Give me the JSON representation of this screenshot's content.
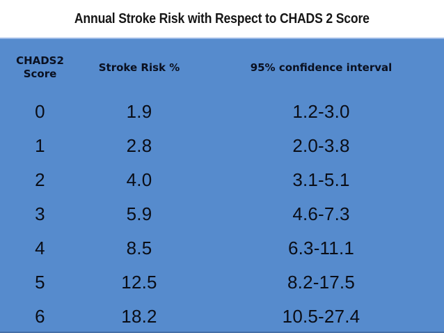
{
  "title": "Annual Stroke Risk with Respect to CHADS 2 Score",
  "table": {
    "headers": {
      "score": "CHADS2\nScore",
      "risk": "Stroke Risk %",
      "ci": "95% confidence interval"
    },
    "rows": [
      {
        "score": "0",
        "risk": "1.9",
        "ci": "1.2-3.0"
      },
      {
        "score": "1",
        "risk": "2.8",
        "ci": "2.0-3.8"
      },
      {
        "score": "2",
        "risk": "4.0",
        "ci": "3.1-5.1"
      },
      {
        "score": "3",
        "risk": "5.9",
        "ci": "4.6-7.3"
      },
      {
        "score": "4",
        "risk": "8.5",
        "ci": "6.3-11.1"
      },
      {
        "score": "5",
        "risk": "12.5",
        "ci": "8.2-17.5"
      },
      {
        "score": "6",
        "risk": "18.2",
        "ci": "10.5-27.4"
      }
    ]
  },
  "colors": {
    "panel_blue": "#568bcd",
    "panel_top_edge": "#9bb9e6",
    "panel_bottom_edge": "#456fa8",
    "title_text": "#161616",
    "table_text": "#0a0d16"
  },
  "chart_data": {
    "type": "table",
    "title": "Annual Stroke Risk with Respect to CHADS 2 Score",
    "columns": [
      "CHADS2 Score",
      "Stroke Risk %",
      "95% confidence interval"
    ],
    "rows": [
      [
        0,
        1.9,
        "1.2-3.0"
      ],
      [
        1,
        2.8,
        "2.0-3.8"
      ],
      [
        2,
        4.0,
        "3.1-5.1"
      ],
      [
        3,
        5.9,
        "4.6-7.3"
      ],
      [
        4,
        8.5,
        "6.3-11.1"
      ],
      [
        5,
        12.5,
        "8.2-17.5"
      ],
      [
        6,
        18.2,
        "10.5-27.4"
      ]
    ]
  }
}
